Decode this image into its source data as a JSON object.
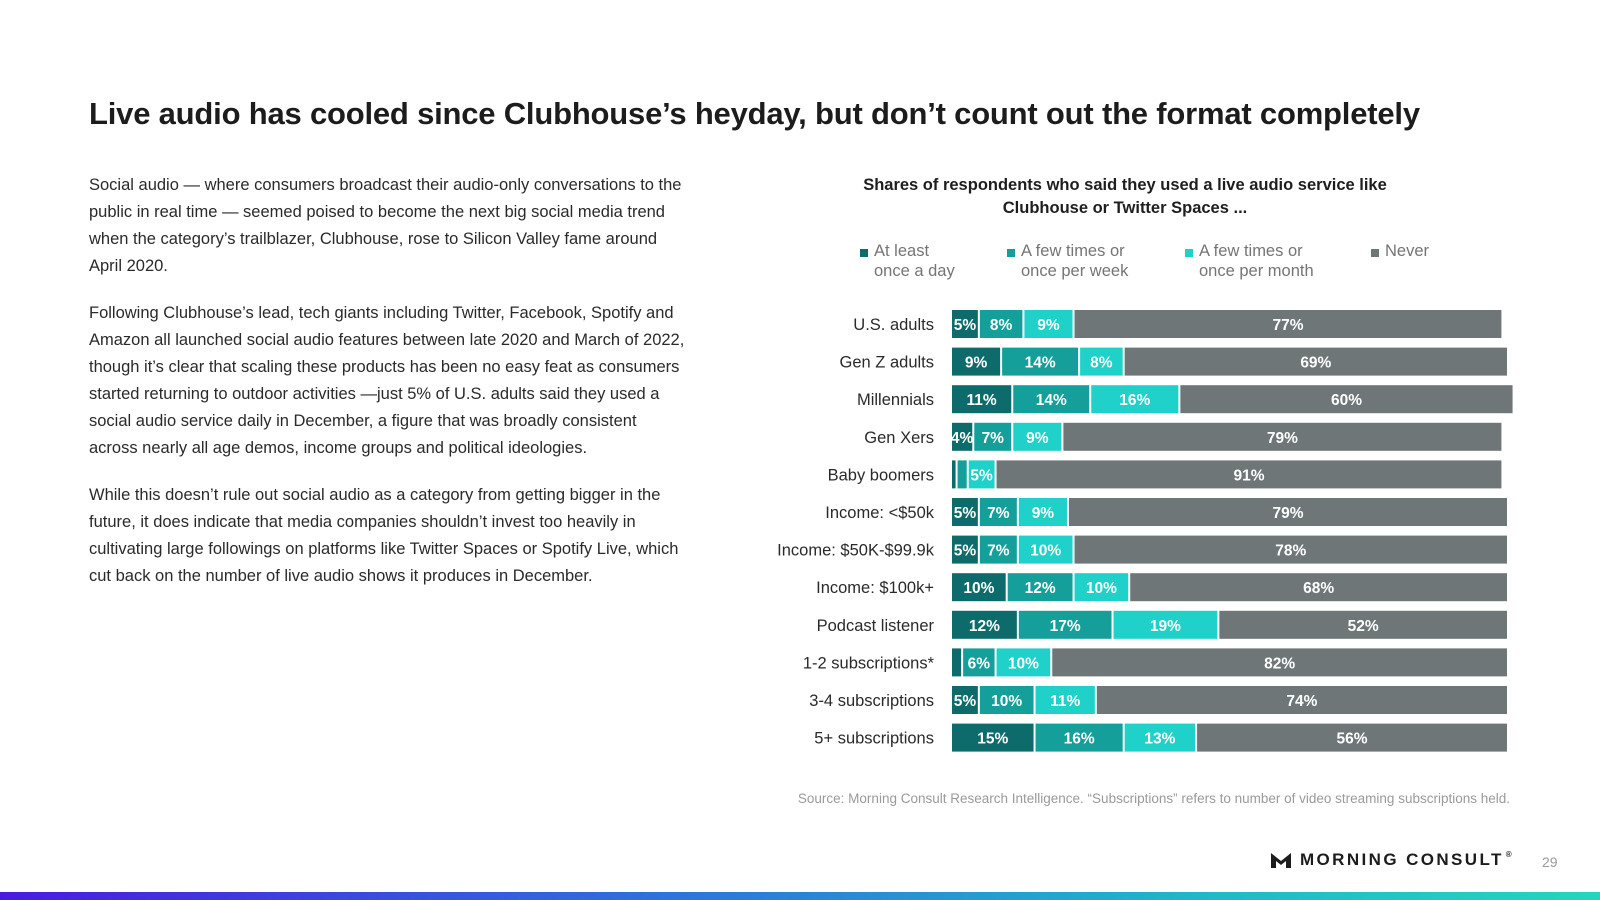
{
  "title": "Live audio has cooled since Clubhouse’s heyday, but don’t count out the format completely",
  "paragraphs": [
    "Social audio — where consumers broadcast their audio-only conversations to the public in real time — seemed poised to become the next big social media trend when the category’s trailblazer, Clubhouse, rose to Silicon Valley fame around April 2020.",
    "Following Clubhouse’s lead, tech giants including Twitter, Facebook, Spotify and Amazon all launched social audio features between late 2020 and March of 2022, though it’s clear that scaling these products has been no easy feat as consumers started returning to outdoor activities —just 5% of U.S. adults said they used a social audio service daily in December, a figure that was broadly consistent across nearly all age demos, income groups and political ideologies.",
    "While this doesn’t rule out social audio as a category from getting bigger in the future, it does indicate that media companies shouldn’t invest too heavily in cultivating large followings on platforms like Twitter Spaces or Spotify Live, which cut back on the number of live audio shows it produces in December."
  ],
  "colors": {
    "daily": "#0d6b6b",
    "weekly": "#149f9a",
    "monthly": "#1fd1c8",
    "never": "#6e7677"
  },
  "chart_data": {
    "type": "bar",
    "orientation": "horizontal",
    "stacked": true,
    "title_line1": "Shares of respondents who said they used a live audio service like",
    "title_line2": "Clubhouse or Twitter Spaces ...",
    "unit": "%",
    "xlim": [
      0,
      100
    ],
    "categories": [
      "U.S. adults",
      "Gen Z adults",
      "Millennials",
      "Gen Xers",
      "Baby boomers",
      "Income: <$50k",
      "Income: $50K-$99.9k",
      "Income: $100k+",
      "Podcast listener",
      "1-2 subscriptions*",
      "3-4 subscriptions",
      "5+ subscriptions"
    ],
    "series": [
      {
        "key": "daily",
        "name_line1": "At least",
        "name_line2": "once a day",
        "values": [
          5,
          9,
          11,
          4,
          1,
          5,
          5,
          10,
          12,
          2,
          5,
          15
        ]
      },
      {
        "key": "weekly",
        "name_line1": "A few times or",
        "name_line2": "once per week",
        "values": [
          8,
          14,
          14,
          7,
          2,
          7,
          7,
          12,
          17,
          6,
          10,
          16
        ]
      },
      {
        "key": "monthly",
        "name_line1": "A few times or",
        "name_line2": "once per month",
        "values": [
          9,
          8,
          16,
          9,
          5,
          9,
          10,
          10,
          19,
          10,
          11,
          13
        ]
      },
      {
        "key": "never",
        "name_line1": "Never",
        "name_line2": "",
        "values": [
          77,
          69,
          60,
          79,
          91,
          79,
          78,
          68,
          52,
          82,
          74,
          56
        ]
      }
    ],
    "labels": [
      [
        "5%",
        "8%",
        "9%",
        "77%"
      ],
      [
        "9%",
        "14%",
        "8%",
        "69%"
      ],
      [
        "11%",
        "14%",
        "16%",
        "60%"
      ],
      [
        "4%",
        "7%",
        "9%",
        "79%"
      ],
      [
        "",
        "",
        "5%",
        "91%"
      ],
      [
        "5%",
        "7%",
        "9%",
        "79%"
      ],
      [
        "5%",
        "7%",
        "10%",
        "78%"
      ],
      [
        "10%",
        "12%",
        "10%",
        "68%"
      ],
      [
        "12%",
        "17%",
        "19%",
        "52%"
      ],
      [
        "",
        "6%",
        "10%",
        "82%"
      ],
      [
        "5%",
        "10%",
        "11%",
        "74%"
      ],
      [
        "15%",
        "16%",
        "13%",
        "56%"
      ]
    ]
  },
  "source": "Source: Morning Consult Research Intelligence. “Subscriptions” refers to number of video streaming subscriptions held.",
  "logo_text": "MORNING CONSULT",
  "logo_reg": "®",
  "page_number": "29"
}
